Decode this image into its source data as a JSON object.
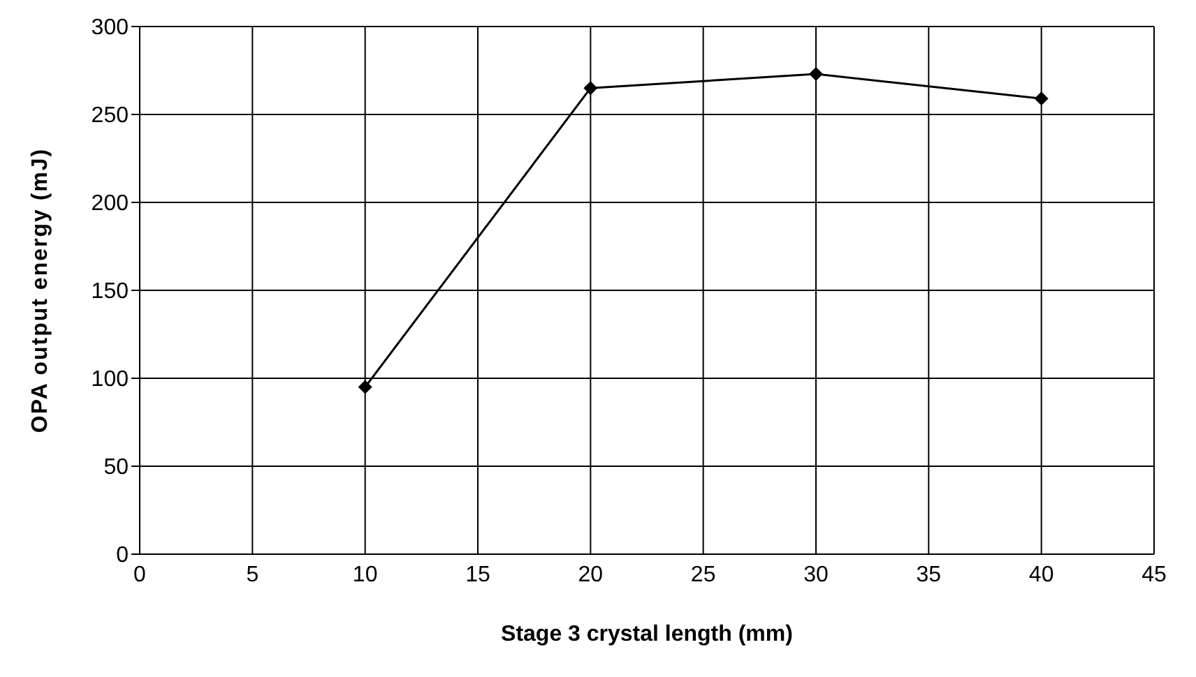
{
  "chart_data": {
    "type": "line",
    "xlabel": "Stage 3 crystal length (mm)",
    "ylabel": "OPA output energy (mJ)",
    "x": [
      10,
      20,
      30,
      40
    ],
    "series": [
      {
        "color": "#000000",
        "values": [
          95,
          265,
          273,
          259
        ]
      }
    ],
    "xlim": [
      0,
      45
    ],
    "xticks": [
      0,
      5,
      10,
      15,
      20,
      25,
      30,
      35,
      40,
      45
    ],
    "ylim": [
      0,
      300
    ],
    "yticks": [
      0,
      50,
      100,
      150,
      200,
      250,
      300
    ],
    "grid": true,
    "marker": "diamond",
    "line_style": "solid"
  }
}
